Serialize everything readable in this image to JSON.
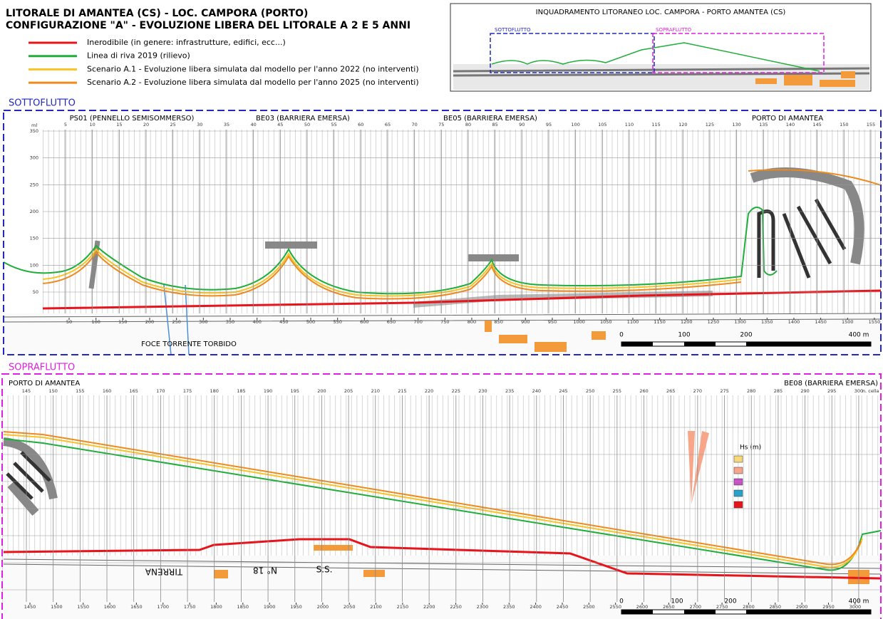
{
  "header": {
    "title": "LITORALE DI AMANTEA (CS) - LOC. CAMPORA (PORTO)",
    "subtitle": "CONFIGURAZIONE \"A\" - EVOLUZIONE LIBERA DEL LITORALE A 2 E 5 ANNI"
  },
  "legend": [
    {
      "label": "Inerodibile (in genere: infrastrutture, edifici, ecc...)",
      "color": "#e8141b"
    },
    {
      "label": "Linea di riva 2019 (rilievo)",
      "color": "#1fae3a"
    },
    {
      "label": "Scenario A.1 - Evoluzione libera simulata dal modello per l'anno 2022 (no interventi)",
      "color": "#f7c326"
    },
    {
      "label": "Scenario A.2 - Evoluzione libera simulata dal modello per l'anno 2025 (no interventi)",
      "color": "#f08a1c"
    }
  ],
  "inset": {
    "title": "INQUADRAMENTO LITORANEO LOC. CAMPORA - PORTO AMANTEA (CS)",
    "labels": [
      "SOTTOFLUTTO",
      "SOPRAFLUTTO"
    ]
  },
  "panels": [
    {
      "title": "SOTTOFLUTTO",
      "unit": "ml",
      "top_ticks": [
        5,
        10,
        15,
        20,
        25,
        30,
        35,
        40,
        45,
        50,
        55,
        60,
        65,
        70,
        75,
        80,
        85,
        90,
        95,
        100,
        105,
        110,
        115,
        120,
        125,
        130,
        135,
        140,
        145,
        150,
        155
      ],
      "y_ticks": [
        50,
        100,
        150,
        200,
        250,
        300,
        350
      ],
      "bottom_ticks": [
        50,
        100,
        150,
        200,
        250,
        300,
        350,
        400,
        450,
        500,
        550,
        600,
        650,
        700,
        750,
        800,
        850,
        900,
        950,
        1000,
        1050,
        1100,
        1150,
        1200,
        1250,
        1300,
        1350,
        1400,
        1450,
        1500,
        1550
      ],
      "labels": [
        "PS01 (PENNELLO SEMISOMMERSO)",
        "BE03 (BARRIERA EMERSA)",
        "BE05 (BARRIERA EMERSA)",
        "PORTO DI AMANTEA",
        "FOCE TORRENTE TORBIDO"
      ],
      "scale": [
        "0",
        "100",
        "200",
        "400 m"
      ]
    },
    {
      "title": "SOPRAFLUTTO",
      "unit": "n. cella",
      "top_ticks": [
        145,
        150,
        155,
        160,
        165,
        170,
        175,
        180,
        185,
        190,
        195,
        200,
        205,
        210,
        215,
        220,
        225,
        230,
        235,
        240,
        245,
        250,
        255,
        260,
        265,
        270,
        275,
        280,
        285,
        290,
        295,
        300
      ],
      "bottom_ticks": [
        1450,
        1500,
        1550,
        1600,
        1650,
        1700,
        1750,
        1800,
        1850,
        1900,
        1950,
        2000,
        2050,
        2100,
        2150,
        2200,
        2250,
        2300,
        2350,
        2400,
        2450,
        2500,
        2550,
        2600,
        2650,
        2700,
        2750,
        2800,
        2850,
        2900,
        2950,
        3000
      ],
      "labels": [
        "PORTO DI AMANTEA",
        "BE08 (BARRIERA EMERSA)",
        "Hs (m)",
        "TIRRENA",
        "N° 18",
        "S.S."
      ],
      "scale": [
        "0",
        "100",
        "200",
        "400 m"
      ]
    }
  ]
}
